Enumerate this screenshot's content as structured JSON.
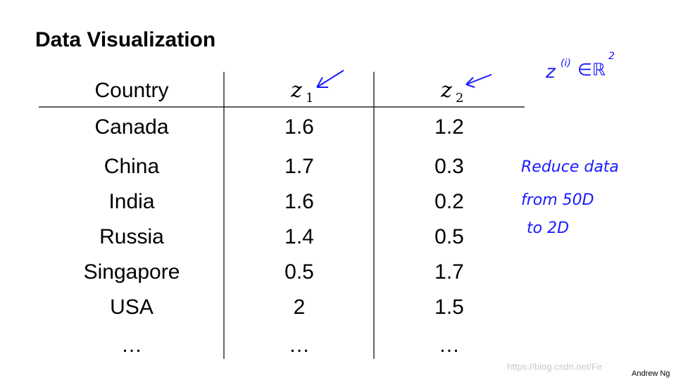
{
  "title": "Data Visualization",
  "table": {
    "header": [
      "Country",
      {
        "symbol": "z",
        "subscript": "1"
      },
      {
        "symbol": "z",
        "subscript": "2"
      }
    ],
    "rows": [
      [
        "Canada",
        1.6,
        1.2
      ],
      [
        "China",
        1.7,
        0.3
      ],
      [
        "India",
        1.6,
        0.2
      ],
      [
        "Russia",
        1.4,
        0.5
      ],
      [
        "Singapore",
        0.5,
        1.7
      ],
      [
        "USA",
        2,
        1.5
      ],
      [
        "…",
        "…",
        "…"
      ]
    ]
  },
  "annotations": {
    "notation": {
      "base": "z",
      "superscript": "(i)",
      "relation": "∈ℝ",
      "power": "2"
    },
    "note": [
      "Reduce data",
      "from 50D",
      "to 2D"
    ]
  },
  "footer": "Andrew Ng",
  "watermark": "https://blog.csdn.net/Fe"
}
